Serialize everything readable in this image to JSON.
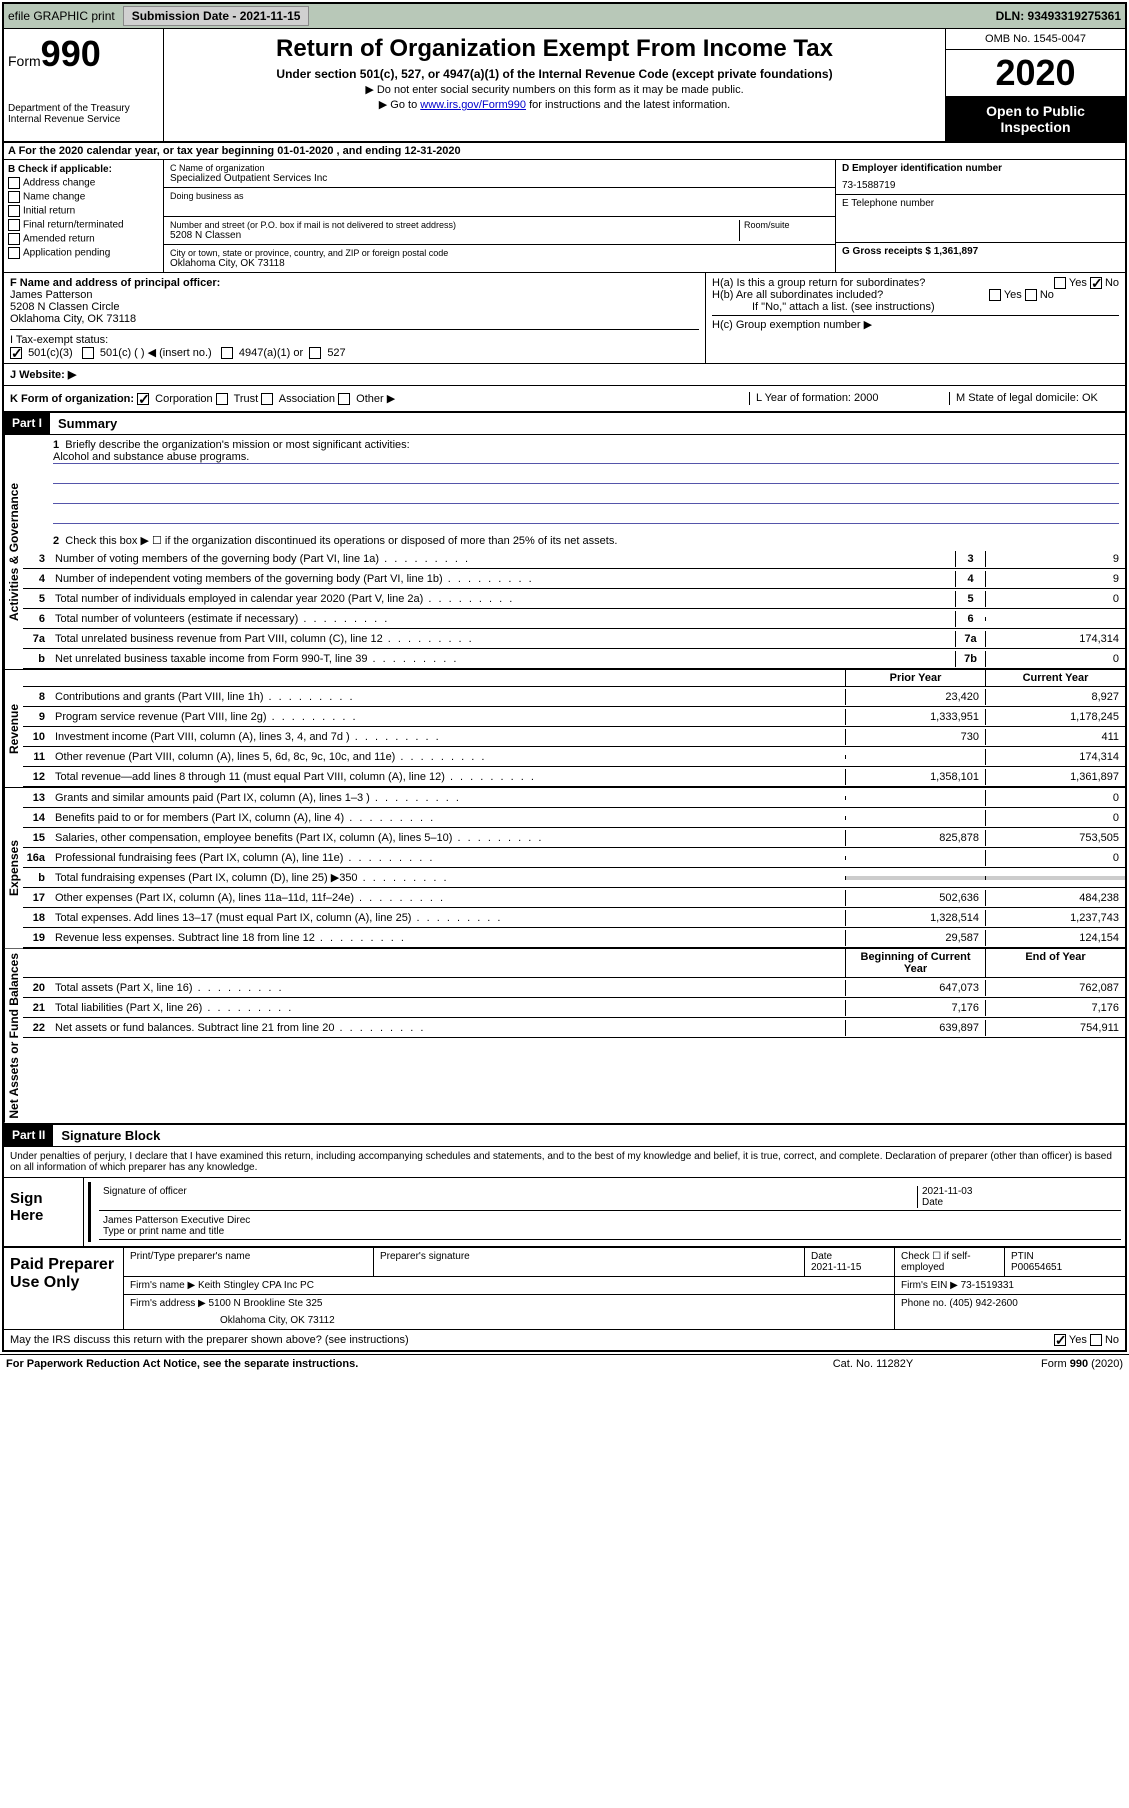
{
  "top_bar": {
    "efile": "efile GRAPHIC print",
    "submission_label": "Submission Date - 2021-11-15",
    "dln": "DLN: 93493319275361"
  },
  "header": {
    "form_word": "Form",
    "form_num": "990",
    "dept": "Department of the Treasury",
    "irs": "Internal Revenue Service",
    "title": "Return of Organization Exempt From Income Tax",
    "subtitle": "Under section 501(c), 527, or 4947(a)(1) of the Internal Revenue Code (except private foundations)",
    "note1": "▶ Do not enter social security numbers on this form as it may be made public.",
    "note2_pre": "▶ Go to ",
    "link": "www.irs.gov/Form990",
    "note2_post": " for instructions and the latest information.",
    "omb": "OMB No. 1545-0047",
    "year": "2020",
    "open": "Open to Public Inspection"
  },
  "row_a": "A For the 2020 calendar year, or tax year beginning 01-01-2020   , and ending 12-31-2020",
  "section_b": {
    "title": "B Check if applicable:",
    "items": [
      "Address change",
      "Name change",
      "Initial return",
      "Final return/terminated",
      "Amended return",
      "Application pending"
    ]
  },
  "section_c": {
    "name_label": "C Name of organization",
    "org_name": "Specialized Outpatient Services Inc",
    "dba_label": "Doing business as",
    "addr_label": "Number and street (or P.O. box if mail is not delivered to street address)",
    "room_label": "Room/suite",
    "addr": "5208 N Classen",
    "city_label": "City or town, state or province, country, and ZIP or foreign postal code",
    "city": "Oklahoma City, OK  73118"
  },
  "section_d": {
    "ein_label": "D Employer identification number",
    "ein": "73-1588719",
    "phone_label": "E Telephone number",
    "gross_label": "G Gross receipts $ 1,361,897"
  },
  "section_f": {
    "label": "F  Name and address of principal officer:",
    "name": "James Patterson",
    "addr1": "5208 N Classen Circle",
    "addr2": "Oklahoma City, OK  73118"
  },
  "section_h": {
    "ha": "H(a)  Is this a group return for subordinates?",
    "hb": "H(b)  Are all subordinates included?",
    "hb_note": "If \"No,\" attach a list. (see instructions)",
    "hc": "H(c)  Group exemption number ▶",
    "yes": "Yes",
    "no": "No"
  },
  "row_i": {
    "label": "I   Tax-exempt status:",
    "opts": [
      "501(c)(3)",
      "501(c) (  ) ◀ (insert no.)",
      "4947(a)(1) or",
      "527"
    ]
  },
  "row_j": "J   Website: ▶",
  "row_k": {
    "left": "K Form of organization:",
    "opts": [
      "Corporation",
      "Trust",
      "Association",
      "Other ▶"
    ],
    "l_label": "L Year of formation: 2000",
    "m_label": "M State of legal domicile: OK"
  },
  "part1": {
    "hdr": "Part I",
    "title": "Summary",
    "vert_ag": "Activities & Governance",
    "vert_rev": "Revenue",
    "vert_exp": "Expenses",
    "vert_na": "Net Assets or Fund Balances",
    "line1": "Briefly describe the organization's mission or most significant activities:",
    "mission": "Alcohol and substance abuse programs.",
    "line2": "Check this box ▶ ☐  if the organization discontinued its operations or disposed of more than 25% of its net assets.",
    "lines": [
      {
        "n": "3",
        "t": "Number of voting members of the governing body (Part VI, line 1a)",
        "b": "3",
        "v": "9"
      },
      {
        "n": "4",
        "t": "Number of independent voting members of the governing body (Part VI, line 1b)",
        "b": "4",
        "v": "9"
      },
      {
        "n": "5",
        "t": "Total number of individuals employed in calendar year 2020 (Part V, line 2a)",
        "b": "5",
        "v": "0"
      },
      {
        "n": "6",
        "t": "Total number of volunteers (estimate if necessary)",
        "b": "6",
        "v": ""
      },
      {
        "n": "7a",
        "t": "Total unrelated business revenue from Part VIII, column (C), line 12",
        "b": "7a",
        "v": "174,314"
      },
      {
        "n": "b",
        "t": "Net unrelated business taxable income from Form 990-T, line 39",
        "b": "7b",
        "v": "0"
      }
    ],
    "hdr_prior": "Prior Year",
    "hdr_curr": "Current Year",
    "rev_lines": [
      {
        "n": "8",
        "t": "Contributions and grants (Part VIII, line 1h)",
        "p": "23,420",
        "c": "8,927"
      },
      {
        "n": "9",
        "t": "Program service revenue (Part VIII, line 2g)",
        "p": "1,333,951",
        "c": "1,178,245"
      },
      {
        "n": "10",
        "t": "Investment income (Part VIII, column (A), lines 3, 4, and 7d )",
        "p": "730",
        "c": "411"
      },
      {
        "n": "11",
        "t": "Other revenue (Part VIII, column (A), lines 5, 6d, 8c, 9c, 10c, and 11e)",
        "p": "",
        "c": "174,314"
      },
      {
        "n": "12",
        "t": "Total revenue—add lines 8 through 11 (must equal Part VIII, column (A), line 12)",
        "p": "1,358,101",
        "c": "1,361,897"
      }
    ],
    "exp_lines": [
      {
        "n": "13",
        "t": "Grants and similar amounts paid (Part IX, column (A), lines 1–3 )",
        "p": "",
        "c": "0"
      },
      {
        "n": "14",
        "t": "Benefits paid to or for members (Part IX, column (A), line 4)",
        "p": "",
        "c": "0"
      },
      {
        "n": "15",
        "t": "Salaries, other compensation, employee benefits (Part IX, column (A), lines 5–10)",
        "p": "825,878",
        "c": "753,505"
      },
      {
        "n": "16a",
        "t": "Professional fundraising fees (Part IX, column (A), line 11e)",
        "p": "",
        "c": "0"
      },
      {
        "n": "b",
        "t": "Total fundraising expenses (Part IX, column (D), line 25) ▶350",
        "p": "shaded",
        "c": "shaded"
      },
      {
        "n": "17",
        "t": "Other expenses (Part IX, column (A), lines 11a–11d, 11f–24e)",
        "p": "502,636",
        "c": "484,238"
      },
      {
        "n": "18",
        "t": "Total expenses. Add lines 13–17 (must equal Part IX, column (A), line 25)",
        "p": "1,328,514",
        "c": "1,237,743"
      },
      {
        "n": "19",
        "t": "Revenue less expenses. Subtract line 18 from line 12",
        "p": "29,587",
        "c": "124,154"
      }
    ],
    "hdr_beg": "Beginning of Current Year",
    "hdr_end": "End of Year",
    "na_lines": [
      {
        "n": "20",
        "t": "Total assets (Part X, line 16)",
        "p": "647,073",
        "c": "762,087"
      },
      {
        "n": "21",
        "t": "Total liabilities (Part X, line 26)",
        "p": "7,176",
        "c": "7,176"
      },
      {
        "n": "22",
        "t": "Net assets or fund balances. Subtract line 21 from line 20",
        "p": "639,897",
        "c": "754,911"
      }
    ]
  },
  "part2": {
    "hdr": "Part II",
    "title": "Signature Block",
    "perjury": "Under penalties of perjury, I declare that I have examined this return, including accompanying schedules and statements, and to the best of my knowledge and belief, it is true, correct, and complete. Declaration of preparer (other than officer) is based on all information of which preparer has any knowledge.",
    "sign_here": "Sign Here",
    "sig_officer": "Signature of officer",
    "sig_date": "2021-11-03",
    "date_lbl": "Date",
    "officer_name": "James Patterson  Executive Direc",
    "type_name": "Type or print name and title",
    "paid_prep": "Paid Preparer Use Only",
    "prep_name_lbl": "Print/Type preparer's name",
    "prep_sig_lbl": "Preparer's signature",
    "prep_date_lbl": "Date",
    "prep_date": "2021-11-15",
    "check_self": "Check ☐ if self-employed",
    "ptin_lbl": "PTIN",
    "ptin": "P00654651",
    "firm_name_lbl": "Firm's name    ▶",
    "firm_name": "Keith Stingley CPA Inc PC",
    "firm_ein_lbl": "Firm's EIN ▶",
    "firm_ein": "73-1519331",
    "firm_addr_lbl": "Firm's address ▶",
    "firm_addr1": "5100 N Brookline Ste 325",
    "firm_addr2": "Oklahoma City, OK  73112",
    "phone_lbl": "Phone no.",
    "phone": "(405) 942-2600",
    "discuss": "May the IRS discuss this return with the preparer shown above? (see instructions)"
  },
  "footer": {
    "left": "For Paperwork Reduction Act Notice, see the separate instructions.",
    "mid": "Cat. No. 11282Y",
    "right": "Form 990 (2020)"
  }
}
